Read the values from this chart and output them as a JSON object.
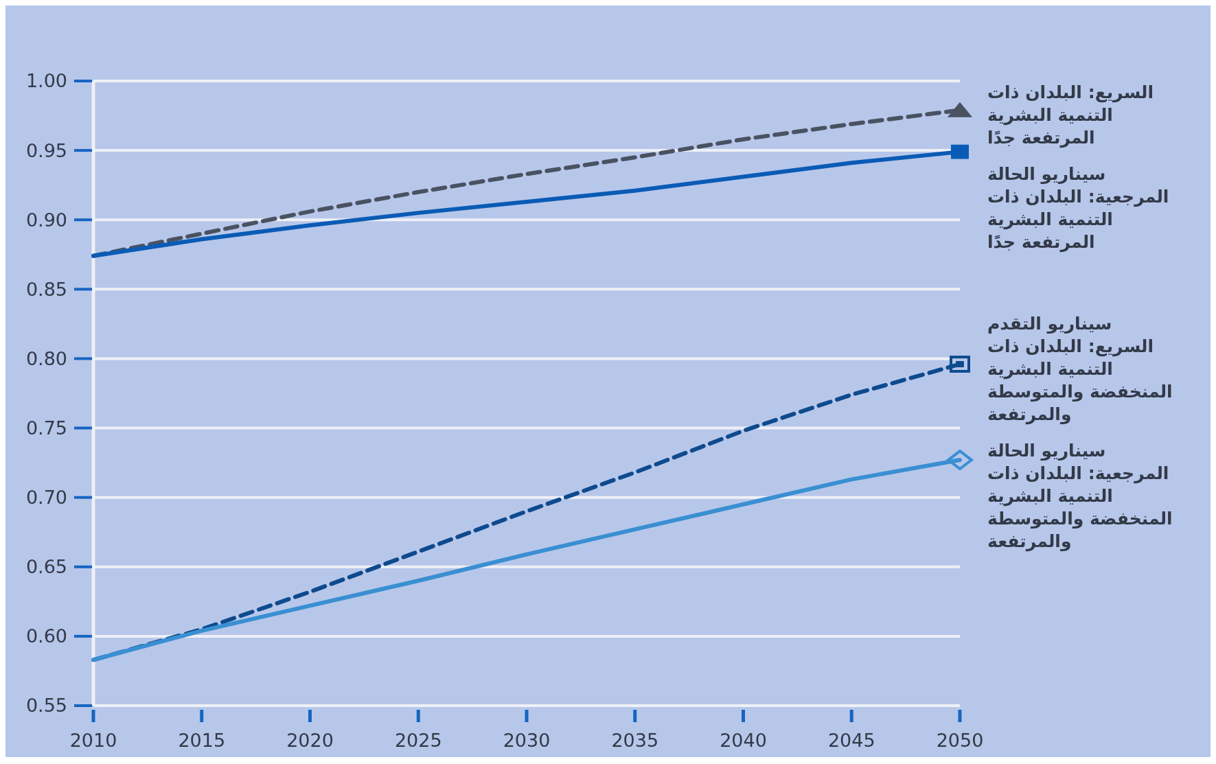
{
  "chart_data": {
    "type": "line",
    "x": [
      2010,
      2015,
      2020,
      2025,
      2030,
      2035,
      2040,
      2045,
      2050
    ],
    "xlim": [
      2010,
      2050
    ],
    "xticks": [
      2010,
      2015,
      2020,
      2025,
      2030,
      2035,
      2040,
      2045,
      2050
    ],
    "ylim": [
      0.55,
      1.0
    ],
    "yticks": [
      {
        "value": 0.55,
        "label": "0.55"
      },
      {
        "value": 0.6,
        "label": "0.60"
      },
      {
        "value": 0.65,
        "label": "0.65"
      },
      {
        "value": 0.7,
        "label": "0.70"
      },
      {
        "value": 0.75,
        "label": "0.75"
      },
      {
        "value": 0.8,
        "label": "0.80"
      },
      {
        "value": 0.85,
        "label": "0.85"
      },
      {
        "value": 0.9,
        "label": "0.90"
      },
      {
        "value": 0.95,
        "label": "0.95"
      },
      {
        "value": 1.0,
        "label": "1.00"
      }
    ],
    "grid": "y",
    "legend": "right",
    "series": [
      {
        "name": "السريع: البلدان ذات التنمية البشرية المرتفعة جدًا",
        "color": "#4a5262",
        "line_style": "dashed",
        "values": [
          0.874,
          0.89,
          0.906,
          0.92,
          0.933,
          0.945,
          0.958,
          0.969,
          0.979
        ]
      },
      {
        "name": "سيناريو الحالة المرجعية: البلدان ذات التنمية البشرية المرتفعة جدًا",
        "color": "#0a5bb5",
        "line_style": "solid",
        "values": [
          0.874,
          0.886,
          0.896,
          0.905,
          0.913,
          0.921,
          0.931,
          0.941,
          0.949
        ]
      },
      {
        "name": "سيناريو التقدم السريع: البلدان ذات التنمية البشرية المنخفضة والمتوسطة والمرتفعة",
        "color": "#0e4a8e",
        "line_style": "dashed",
        "values": [
          0.583,
          0.605,
          0.632,
          0.661,
          0.69,
          0.718,
          0.748,
          0.774,
          0.796
        ]
      },
      {
        "name": "سيناريو الحالة المرجعية: البلدان ذات التنمية البشرية المنخفضة والمتوسطة والمرتفعة",
        "color": "#3a8fd2",
        "line_style": "solid",
        "values": [
          0.583,
          0.604,
          0.622,
          0.64,
          0.659,
          0.677,
          0.695,
          0.713,
          0.727
        ]
      }
    ]
  }
}
